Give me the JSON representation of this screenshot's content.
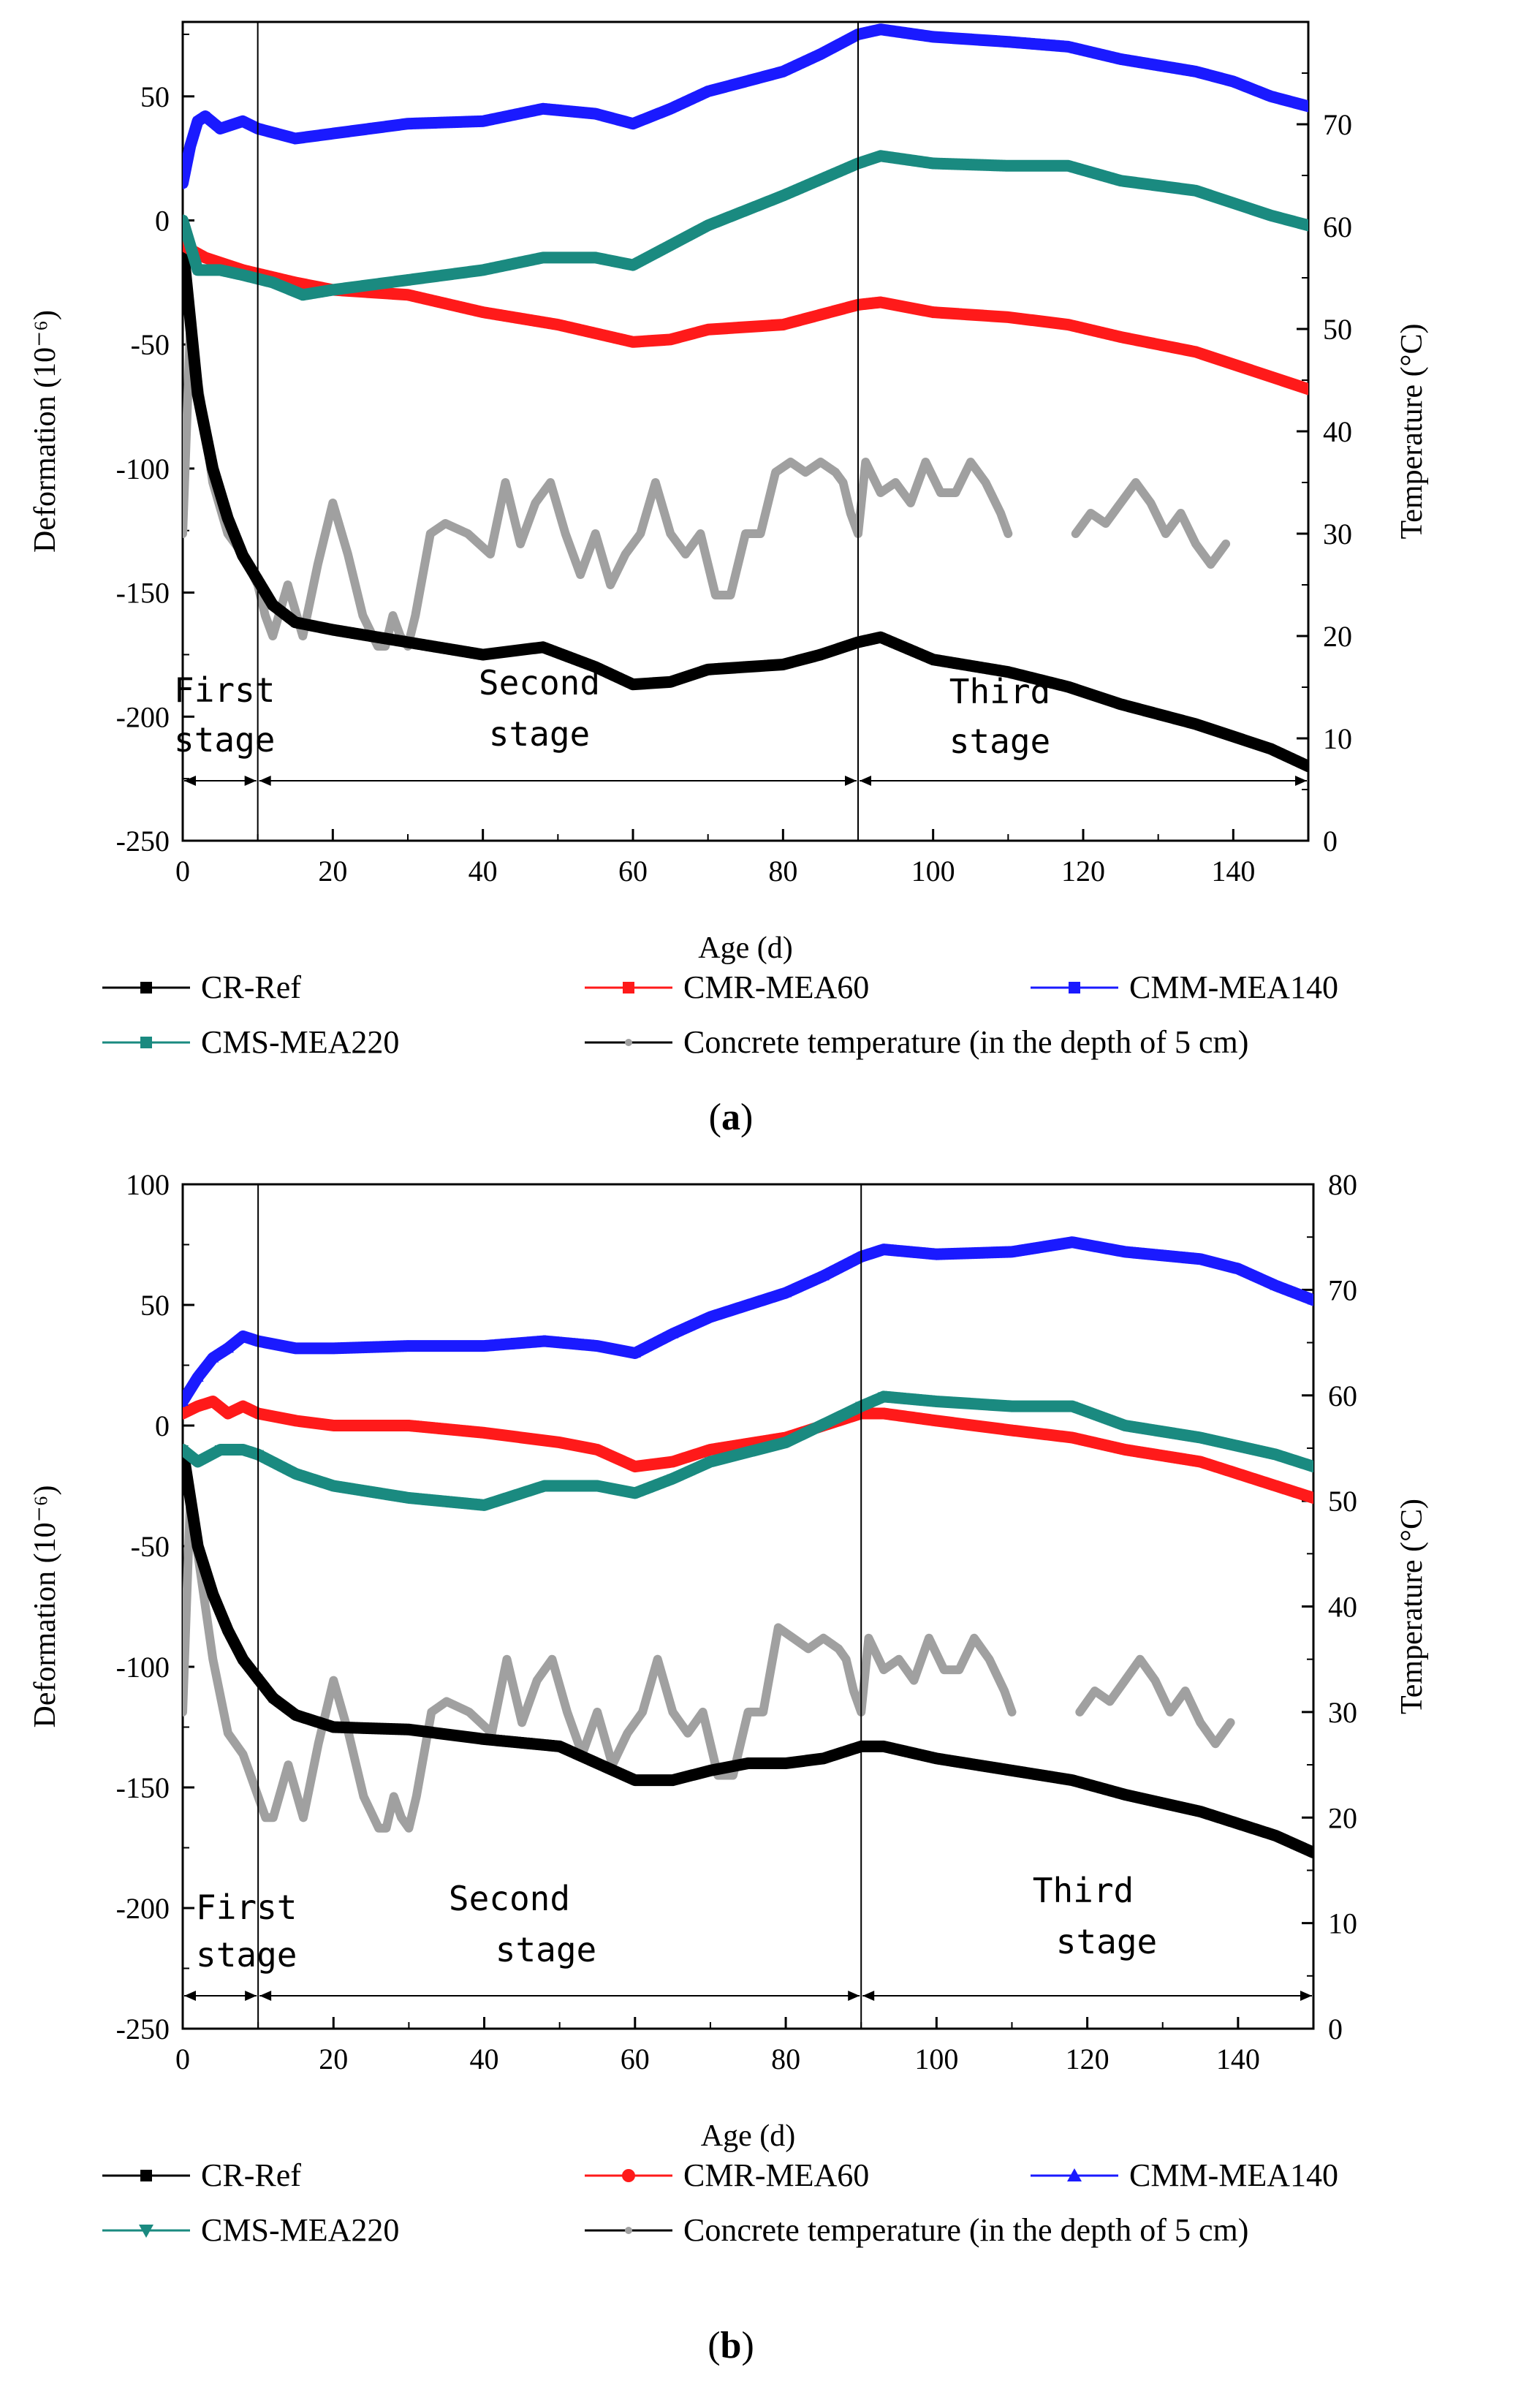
{
  "colors": {
    "cr_ref": "#000000",
    "cmr": "#ff1a1a",
    "cmm": "#1a1aff",
    "cms": "#1a8a80",
    "temp": "#a0a0a0"
  },
  "chart_data": [
    {
      "type": "line",
      "panel_label_open": "(",
      "panel_label_letter": "a",
      "panel_label_close": ")",
      "xlabel": "Age (d)",
      "ylabel": "Deformation (10⁻⁶)",
      "y2label": "Temperature (°C)",
      "xlim": [
        0,
        150
      ],
      "ylim": [
        -250,
        80
      ],
      "y2lim": [
        0,
        80
      ],
      "xticks": [
        0,
        20,
        40,
        60,
        80,
        100,
        120,
        140
      ],
      "yticks": [
        -250,
        -200,
        -150,
        -100,
        -50,
        0,
        50
      ],
      "y2ticks": [
        0,
        10,
        20,
        30,
        40,
        50,
        60,
        70
      ],
      "stage_boundaries": [
        10,
        90
      ],
      "stage_labels": [
        "First",
        "stage",
        "Second",
        "stage",
        "Third",
        "stage"
      ],
      "series": [
        {
          "name": "CR-Ref",
          "key": "cr_ref",
          "marker": "square",
          "axis": "left",
          "x": [
            0,
            1,
            2,
            4,
            6,
            8,
            10,
            12,
            15,
            20,
            30,
            40,
            48,
            55,
            60,
            65,
            70,
            75,
            80,
            85,
            90,
            93,
            100,
            110,
            118,
            125,
            135,
            145,
            150
          ],
          "values": [
            -10,
            -40,
            -70,
            -100,
            -120,
            -135,
            -145,
            -155,
            -162,
            -165,
            -170,
            -175,
            -172,
            -180,
            -187,
            -186,
            -181,
            -180,
            -179,
            -175,
            -170,
            -168,
            -177,
            -182,
            -188,
            -195,
            -203,
            -213,
            -220
          ]
        },
        {
          "name": "CMR-MEA60",
          "key": "cmr",
          "marker": "square",
          "axis": "left",
          "x": [
            0,
            3,
            8,
            15,
            20,
            30,
            40,
            50,
            60,
            65,
            70,
            80,
            90,
            93,
            100,
            110,
            118,
            125,
            135,
            145,
            150
          ],
          "values": [
            -10,
            -15,
            -20,
            -25,
            -28,
            -30,
            -37,
            -42,
            -49,
            -48,
            -44,
            -42,
            -34,
            -33,
            -37,
            -39,
            -42,
            -47,
            -53,
            -63,
            -68
          ]
        },
        {
          "name": "CMM-MEA140",
          "key": "cmm",
          "marker": "square",
          "axis": "left",
          "x": [
            0,
            1,
            2,
            3,
            5,
            8,
            10,
            15,
            20,
            30,
            40,
            48,
            55,
            60,
            65,
            70,
            75,
            80,
            85,
            90,
            93,
            100,
            110,
            118,
            125,
            135,
            140,
            145,
            150
          ],
          "values": [
            15,
            30,
            40,
            42,
            37,
            40,
            37,
            33,
            35,
            39,
            40,
            45,
            43,
            39,
            45,
            52,
            56,
            60,
            67,
            75,
            77,
            74,
            72,
            70,
            65,
            60,
            56,
            50,
            46
          ]
        },
        {
          "name": "CMS-MEA220",
          "key": "cms",
          "marker": "square",
          "axis": "left",
          "x": [
            0,
            2,
            5,
            8,
            12,
            16,
            20,
            30,
            40,
            48,
            55,
            60,
            65,
            70,
            80,
            90,
            93,
            100,
            110,
            118,
            125,
            135,
            145,
            150
          ],
          "values": [
            0,
            -20,
            -20,
            -22,
            -25,
            -30,
            -28,
            -24,
            -20,
            -15,
            -15,
            -18,
            -10,
            -2,
            10,
            23,
            26,
            23,
            22,
            22,
            16,
            12,
            2,
            -2
          ]
        },
        {
          "name": "Concrete temperature (in the depth of 5 cm)",
          "key": "temp",
          "marker": "dot",
          "axis": "right",
          "x": [
            0,
            1,
            2,
            4,
            6,
            8,
            10,
            11,
            12,
            14,
            16,
            18,
            20,
            22,
            24,
            26,
            27,
            28,
            29,
            30,
            31,
            33,
            35,
            38,
            41,
            43,
            45,
            47,
            49,
            51,
            53,
            55,
            57,
            59,
            61,
            63,
            65,
            67,
            69,
            71,
            73,
            75,
            77,
            79,
            81,
            83,
            85,
            87,
            88,
            89,
            90,
            91,
            93,
            95,
            97,
            99,
            101,
            103,
            105,
            107,
            109,
            110,
            null,
            119,
            121,
            123,
            125,
            127,
            129,
            131,
            133,
            135,
            137,
            139
          ],
          "values": [
            30,
            50,
            45,
            35,
            30,
            28,
            25,
            22,
            20,
            25,
            20,
            27,
            33,
            28,
            22,
            19,
            19,
            22,
            20,
            19,
            22,
            30,
            31,
            30,
            28,
            35,
            29,
            33,
            35,
            30,
            26,
            30,
            25,
            28,
            30,
            35,
            30,
            28,
            30,
            24,
            24,
            30,
            30,
            36,
            37,
            36,
            37,
            36,
            35,
            32,
            30,
            37,
            34,
            35,
            33,
            37,
            34,
            34,
            37,
            35,
            32,
            30,
            null,
            30,
            32,
            31,
            33,
            35,
            33,
            30,
            32,
            29,
            27,
            29
          ]
        }
      ]
    },
    {
      "type": "line",
      "panel_label_open": "(",
      "panel_label_letter": "b",
      "panel_label_close": ")",
      "xlabel": "Age (d)",
      "ylabel": "Deformation (10⁻⁶)",
      "y2label": "Temperature (°C)",
      "xlim": [
        0,
        150
      ],
      "ylim": [
        -250,
        100
      ],
      "y2lim": [
        0,
        80
      ],
      "xticks": [
        0,
        20,
        40,
        60,
        80,
        100,
        120,
        140
      ],
      "yticks": [
        -250,
        -200,
        -150,
        -100,
        -50,
        0,
        50,
        100
      ],
      "y2ticks": [
        0,
        10,
        20,
        30,
        40,
        50,
        60,
        70,
        80
      ],
      "stage_boundaries": [
        10,
        90
      ],
      "stage_labels": [
        "First",
        "stage",
        "Second",
        "stage",
        "Third",
        "stage"
      ],
      "series": [
        {
          "name": "CR-Ref",
          "key": "cr_ref",
          "marker": "square",
          "axis": "left",
          "x": [
            0,
            1,
            2,
            4,
            6,
            8,
            10,
            12,
            15,
            20,
            30,
            40,
            50,
            55,
            60,
            65,
            70,
            75,
            80,
            85,
            90,
            93,
            100,
            110,
            118,
            125,
            135,
            145,
            150
          ],
          "values": [
            -10,
            -30,
            -50,
            -70,
            -85,
            -97,
            -105,
            -113,
            -120,
            -125,
            -126,
            -130,
            -133,
            -140,
            -147,
            -147,
            -143,
            -140,
            -140,
            -138,
            -133,
            -133,
            -138,
            -143,
            -147,
            -153,
            -160,
            -170,
            -177
          ]
        },
        {
          "name": "CMR-MEA60",
          "key": "cmr",
          "marker": "circle",
          "axis": "left",
          "x": [
            0,
            2,
            4,
            6,
            8,
            10,
            15,
            20,
            30,
            40,
            50,
            55,
            60,
            65,
            70,
            80,
            90,
            93,
            100,
            110,
            118,
            125,
            135,
            145,
            150
          ],
          "values": [
            5,
            8,
            10,
            5,
            8,
            5,
            2,
            0,
            0,
            -3,
            -7,
            -10,
            -17,
            -15,
            -10,
            -5,
            5,
            5,
            2,
            -2,
            -5,
            -10,
            -15,
            -25,
            -30
          ]
        },
        {
          "name": "CMM-MEA140",
          "key": "cmm",
          "marker": "triangle-up",
          "axis": "left",
          "x": [
            0,
            2,
            4,
            6,
            8,
            10,
            15,
            20,
            30,
            40,
            48,
            55,
            60,
            65,
            70,
            75,
            80,
            85,
            90,
            93,
            100,
            110,
            118,
            125,
            135,
            140,
            145,
            150
          ],
          "values": [
            10,
            20,
            28,
            32,
            37,
            35,
            32,
            32,
            33,
            33,
            35,
            33,
            30,
            38,
            45,
            50,
            55,
            62,
            70,
            73,
            71,
            72,
            76,
            72,
            69,
            65,
            58,
            52
          ]
        },
        {
          "name": "CMS-MEA220",
          "key": "cms",
          "marker": "triangle-down",
          "axis": "left",
          "x": [
            0,
            2,
            5,
            8,
            10,
            15,
            20,
            30,
            40,
            48,
            55,
            60,
            65,
            70,
            80,
            90,
            93,
            100,
            110,
            118,
            125,
            135,
            145,
            150
          ],
          "values": [
            -10,
            -15,
            -10,
            -10,
            -12,
            -20,
            -25,
            -30,
            -33,
            -25,
            -25,
            -28,
            -22,
            -15,
            -7,
            8,
            12,
            10,
            8,
            8,
            0,
            -5,
            -12,
            -17
          ]
        },
        {
          "name": "Concrete temperature (in the depth of 5 cm)",
          "key": "temp",
          "marker": "dot",
          "axis": "right",
          "x": [
            0,
            1,
            2,
            4,
            6,
            8,
            10,
            11,
            12,
            14,
            16,
            18,
            20,
            22,
            24,
            26,
            27,
            28,
            29,
            30,
            31,
            33,
            35,
            38,
            41,
            43,
            45,
            47,
            49,
            51,
            53,
            55,
            57,
            59,
            61,
            63,
            65,
            67,
            69,
            71,
            73,
            75,
            77,
            79,
            81,
            83,
            85,
            87,
            88,
            89,
            90,
            91,
            93,
            95,
            97,
            99,
            101,
            103,
            105,
            107,
            109,
            110,
            null,
            119,
            121,
            123,
            125,
            127,
            129,
            131,
            133,
            135,
            137,
            139
          ],
          "values": [
            30,
            50,
            45,
            35,
            28,
            26,
            22,
            20,
            20,
            25,
            20,
            27,
            33,
            28,
            22,
            19,
            19,
            22,
            20,
            19,
            22,
            30,
            31,
            30,
            28,
            35,
            29,
            33,
            35,
            30,
            26,
            30,
            25,
            28,
            30,
            35,
            30,
            28,
            30,
            24,
            24,
            30,
            30,
            38,
            37,
            36,
            37,
            36,
            35,
            32,
            30,
            37,
            34,
            35,
            33,
            37,
            34,
            34,
            37,
            35,
            32,
            30,
            null,
            30,
            32,
            31,
            33,
            35,
            33,
            30,
            32,
            29,
            27,
            29
          ]
        }
      ]
    }
  ]
}
